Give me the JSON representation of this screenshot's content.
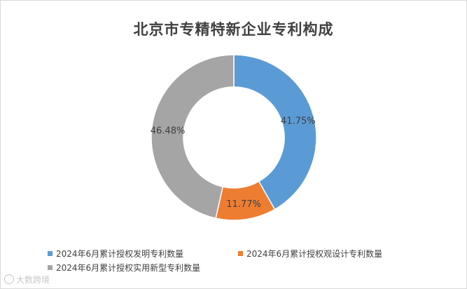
{
  "chart_data": {
    "type": "pie",
    "donut": true,
    "title": "北京市专精特新企业专利构成",
    "categories": [
      "2024年6月累计授权发明专利数量",
      "2024年6月累计授权观设计专利数量",
      "2024年6月累计授权实用新型专利数量"
    ],
    "values": [
      41.75,
      11.77,
      46.48
    ],
    "labels": [
      "41.75%",
      "11.77%",
      "46.48%"
    ],
    "colors": [
      "#5b9bd5",
      "#ed7d31",
      "#a5a5a5"
    ],
    "legend_position": "bottom"
  },
  "watermark": {
    "text": "大数跨境"
  }
}
